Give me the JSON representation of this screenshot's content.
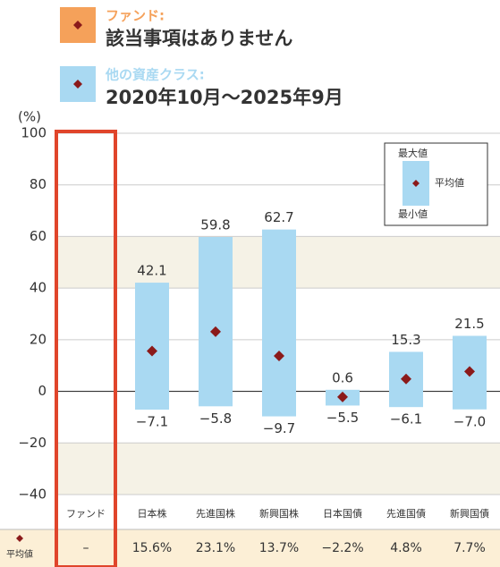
{
  "chart_data": {
    "type": "range",
    "legend": [
      {
        "title": "ファンド:",
        "text": "該当事項はありません",
        "color": "#f5a15a"
      },
      {
        "title": "他の資産クラス:",
        "text": "2020年10月～2025年9月",
        "color": "#a9d9f2"
      }
    ],
    "y_label": "(%)",
    "ylim": [
      -40,
      100
    ],
    "yticks": [
      100,
      80,
      60,
      40,
      20,
      0,
      {
        "value": -20,
        "label": "−20"
      },
      {
        "value": -40,
        "label": "−40"
      }
    ],
    "grid": true,
    "categories": [
      "ファンド",
      "日本株",
      "先進国株",
      "新興国株",
      "日本国債",
      "先進国債",
      "新興国債"
    ],
    "series": [
      {
        "name": "最大値",
        "values": [
          null,
          42.1,
          59.8,
          62.7,
          0.6,
          15.3,
          21.5
        ]
      },
      {
        "name": "最小値",
        "values": [
          null,
          -7.1,
          -5.8,
          -9.7,
          -5.5,
          -6.1,
          -7.0
        ],
        "value_labels": [
          null,
          "−7.1",
          "−5.8",
          "−9.7",
          "−5.5",
          "−6.1",
          "−7.0"
        ]
      },
      {
        "name": "平均値",
        "values": [
          null,
          15.6,
          23.1,
          13.7,
          -2.2,
          4.8,
          7.7
        ],
        "value_labels": [
          "–",
          "15.6%",
          "23.1%",
          "13.7%",
          "−2.2%",
          "4.8%",
          "7.7%"
        ]
      }
    ],
    "bar_color": "#a9d9f2",
    "marker_color": "#8b1a1a",
    "highlight_color": "#e0452b",
    "table_label": "平均値"
  }
}
